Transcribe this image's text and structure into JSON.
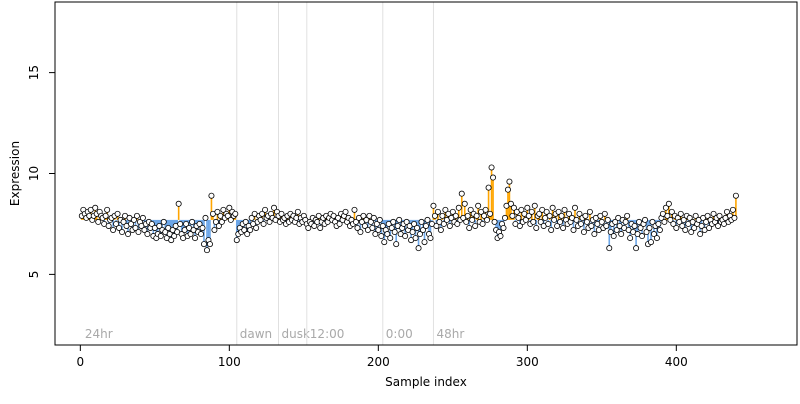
{
  "colors": {
    "above": "#FFA500",
    "below": "#6CA6E8",
    "point_fill": "#FFFFFF",
    "point_stroke": "#000000",
    "condition_line": "#E0E0E0",
    "condition_text": "#A9A9A9",
    "axis": "#000000"
  },
  "chart_data": {
    "type": "scatter",
    "title": "",
    "xlabel": "Sample index",
    "ylabel": "Expression",
    "xlim": [
      -17,
      481
    ],
    "ylim": [
      1.5,
      18.5
    ],
    "xticks": [
      0,
      100,
      200,
      300,
      400
    ],
    "yticks": [
      5,
      10,
      15
    ],
    "grid": false,
    "baseline": 7.7,
    "conditions": [
      {
        "label": "24hr",
        "x": 1
      },
      {
        "label": "dawn",
        "x": 105
      },
      {
        "label": "dusk",
        "x": 133
      },
      {
        "label": "12:00",
        "x": 152
      },
      {
        "label": "0:00",
        "x": 203
      },
      {
        "label": "48hr",
        "x": 237
      }
    ],
    "series": [
      {
        "x_start": 1,
        "values": [
          7.9,
          8.2,
          8.0,
          7.8,
          8.1,
          7.9,
          8.2,
          7.7,
          7.9,
          8.3,
          8.0,
          7.6,
          8.1,
          7.9,
          7.8,
          7.5,
          7.9,
          8.2,
          7.4,
          7.7,
          7.8,
          7.2,
          7.9,
          7.5,
          8.0,
          7.3,
          7.7,
          7.1,
          7.6,
          7.9,
          7.4,
          7.0,
          7.8,
          7.5,
          7.2,
          7.7,
          7.3,
          7.9,
          7.1,
          7.6,
          7.4,
          7.8,
          7.2,
          7.5,
          7.0,
          7.6,
          7.3,
          7.5,
          6.9,
          7.3,
          6.8,
          7.0,
          7.4,
          6.9,
          7.2,
          7.6,
          7.1,
          6.8,
          7.3,
          7.0,
          6.7,
          7.2,
          6.9,
          7.4,
          7.1,
          8.5,
          7.5,
          7.0,
          6.8,
          7.2,
          7.5,
          6.9,
          7.3,
          7.0,
          7.6,
          7.2,
          6.8,
          7.4,
          7.1,
          7.5,
          7.0,
          7.3,
          6.5,
          7.8,
          6.2,
          6.7,
          6.5,
          8.9,
          8.0,
          7.2,
          7.6,
          8.1,
          7.4,
          7.9,
          7.6,
          8.2,
          7.8,
          8.0,
          7.9,
          8.3,
          7.7,
          8.1,
          7.9,
          8.0,
          6.7,
          7.0,
          7.3,
          7.1,
          7.5,
          7.2,
          7.6,
          7.0,
          7.4,
          7.2,
          7.8,
          7.5,
          8.0,
          7.3,
          7.6,
          7.9,
          7.7,
          8.0,
          7.5,
          8.2,
          7.8,
          7.9,
          7.6,
          8.0,
          7.8,
          8.3,
          7.7,
          8.1,
          7.9,
          7.6,
          8.0,
          7.7,
          7.8,
          7.5,
          7.9,
          7.6,
          8.0,
          7.7,
          7.9,
          7.6,
          7.8,
          8.1,
          7.5,
          7.8,
          7.6,
          7.9,
          7.7,
          7.5,
          7.3,
          7.6,
          7.5,
          7.8,
          7.4,
          7.7,
          7.6,
          7.9,
          7.3,
          7.6,
          7.8,
          7.5,
          7.9,
          7.6,
          7.8,
          8.0,
          7.7,
          7.9,
          7.6,
          7.4,
          7.8,
          7.5,
          8.0,
          7.7,
          7.9,
          8.1,
          7.6,
          7.8,
          7.4,
          7.7,
          7.5,
          8.2,
          7.6,
          7.3,
          7.8,
          7.1,
          7.6,
          7.9,
          7.4,
          7.7,
          7.2,
          7.9,
          7.6,
          7.3,
          7.8,
          7.0,
          7.5,
          7.2,
          7.7,
          6.9,
          7.4,
          6.6,
          7.2,
          7.0,
          7.5,
          6.8,
          7.3,
          7.6,
          7.1,
          6.5,
          7.4,
          7.7,
          7.0,
          7.3,
          7.5,
          6.9,
          7.6,
          7.2,
          7.4,
          6.7,
          7.1,
          7.5,
          6.8,
          7.3,
          6.3,
          7.0,
          7.6,
          7.2,
          6.6,
          7.4,
          7.7,
          7.0,
          6.8,
          7.5,
          8.4,
          7.9,
          7.4,
          8.1,
          7.6,
          7.2,
          7.9,
          7.5,
          8.2,
          7.7,
          8.0,
          7.4,
          7.8,
          8.1,
          7.6,
          7.9,
          7.5,
          8.3,
          7.7,
          9.0,
          7.8,
          8.5,
          7.6,
          7.9,
          7.3,
          8.2,
          7.7,
          8.0,
          7.4,
          7.9,
          8.4,
          7.6,
          8.1,
          7.5,
          7.9,
          8.2,
          7.7,
          9.3,
          8.0,
          10.3,
          9.8,
          7.6,
          7.2,
          6.8,
          7.1,
          6.9,
          7.5,
          7.3,
          7.8,
          8.4,
          9.2,
          9.6,
          8.5,
          7.9,
          8.3,
          7.5,
          8.1,
          7.8,
          7.4,
          8.2,
          7.6,
          8.0,
          7.7,
          8.3,
          7.9,
          7.5,
          8.1,
          7.6,
          8.4,
          7.3,
          7.9,
          8.0,
          7.6,
          8.2,
          7.4,
          7.8,
          8.1,
          7.5,
          7.9,
          7.2,
          8.3,
          7.7,
          8.0,
          7.4,
          8.1,
          7.6,
          7.9,
          7.3,
          8.2,
          7.7,
          7.5,
          8.0,
          7.6,
          7.8,
          7.2,
          8.3,
          7.7,
          7.4,
          8.0,
          7.5,
          7.8,
          7.1,
          7.9,
          7.6,
          7.3,
          8.1,
          7.4,
          7.7,
          7.0,
          7.8,
          7.5,
          7.2,
          7.9,
          7.6,
          7.3,
          8.0,
          7.4,
          7.7,
          6.3,
          7.1,
          7.5,
          6.9,
          7.6,
          7.2,
          7.8,
          7.4,
          7.0,
          7.7,
          7.3,
          7.6,
          7.9,
          7.2,
          6.8,
          7.5,
          7.1,
          7.4,
          6.3,
          7.0,
          7.6,
          7.3,
          6.9,
          7.5,
          7.7,
          7.1,
          6.5,
          7.3,
          6.6,
          7.6,
          7.0,
          7.4,
          6.8,
          7.5,
          7.2,
          7.8,
          8.0,
          7.6,
          8.3,
          7.9,
          8.5,
          7.7,
          8.1,
          7.5,
          7.9,
          7.3,
          7.8,
          7.6,
          8.0,
          7.4,
          7.7,
          7.2,
          7.9,
          7.5,
          7.8,
          7.1,
          7.6,
          7.3,
          7.9,
          7.5,
          7.7,
          7.0,
          7.4,
          7.8,
          7.2,
          7.6,
          7.9,
          7.3,
          7.7,
          7.5,
          8.0,
          7.6,
          7.8,
          7.4,
          7.9,
          7.6,
          7.7,
          7.5,
          7.8,
          8.1,
          7.6,
          7.9,
          7.7,
          8.2,
          7.8,
          8.9
        ]
      }
    ]
  }
}
